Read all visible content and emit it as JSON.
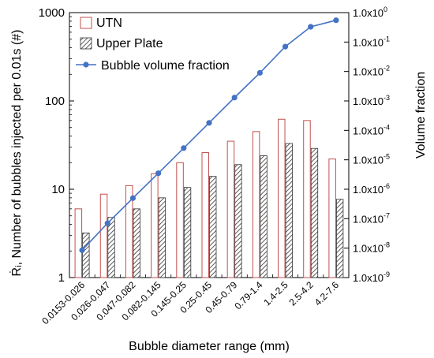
{
  "chart_data": {
    "type": "bar",
    "xlabel": "Bubble diameter range (mm)",
    "ylabel": "Ṙᵢ, Number of bubbles injected per 0.01s (#)",
    "y2label": "Volume fraction",
    "yscale": "log",
    "ylim": [
      1,
      1000
    ],
    "y2scale": "log",
    "y2lim": [
      1e-09,
      1
    ],
    "yticks": [
      "1",
      "10",
      "100",
      "1000"
    ],
    "y2ticks": [
      "1.0x10",
      "1.0x10",
      "1.0x10",
      "1.0x10",
      "1.0x10",
      "1.0x10",
      "1.0x10",
      "1.0x10",
      "1.0x10",
      "1.0x10"
    ],
    "y2tick_exponents": [
      "-9",
      "-8",
      "-7",
      "-6",
      "-5",
      "-4",
      "-3",
      "-2",
      "-1",
      "0"
    ],
    "categories": [
      "0.0153-0.026",
      "0.026-0.047",
      "0.047-0.082",
      "0.082-0.145",
      "0.145-0.25",
      "0.25-0.45",
      "0.45-0.79",
      "0.79-1.4",
      "1.4-2.5",
      "2.5-4.2",
      "4.2-7.6"
    ],
    "series": [
      {
        "name": "UTN",
        "type": "bar",
        "axis": "left",
        "color": "#c0504d",
        "fill": "#ffffff",
        "values": [
          6,
          8.8,
          11,
          15,
          20,
          26,
          35,
          45,
          62,
          60,
          22
        ]
      },
      {
        "name": "Upper Plate",
        "type": "bar",
        "axis": "left",
        "color": "#333333",
        "fill": "hatch",
        "values": [
          3.2,
          4.8,
          6,
          8,
          10.5,
          14,
          19,
          24,
          33,
          29,
          7.7
        ]
      },
      {
        "name": "Bubble volume fraction",
        "type": "line",
        "axis": "right",
        "color": "#4472c4",
        "values": [
          8.5e-09,
          7e-08,
          5e-07,
          3.5e-06,
          2.5e-05,
          0.00018,
          0.0013,
          0.009,
          0.07,
          0.33,
          0.55
        ]
      }
    ],
    "legend": "top-left"
  }
}
